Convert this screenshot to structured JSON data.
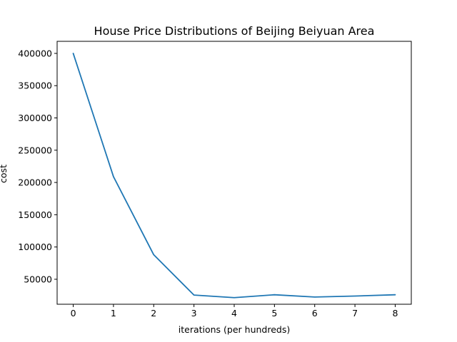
{
  "chart_data": {
    "type": "line",
    "title": "House Price Distributions of Beijing Beiyuan Area",
    "xlabel": "iterations (per hundreds)",
    "ylabel": "cost",
    "x": [
      0,
      1,
      2,
      3,
      4,
      5,
      6,
      7,
      8
    ],
    "series": [
      {
        "color": "#1f77b4",
        "values": [
          400000,
          209000,
          88000,
          25500,
          21500,
          26000,
          22500,
          24000,
          26000
        ]
      }
    ],
    "xlim": [
      -0.4,
      8.4
    ],
    "ylim": [
      11300,
      418700
    ],
    "xticks": [
      0,
      1,
      2,
      3,
      4,
      5,
      6,
      7,
      8
    ],
    "yticks": [
      50000,
      100000,
      150000,
      200000,
      250000,
      300000,
      350000,
      400000
    ],
    "xtick_labels": [
      "0",
      "1",
      "2",
      "3",
      "4",
      "5",
      "6",
      "7",
      "8"
    ],
    "ytick_labels": [
      "50000",
      "100000",
      "150000",
      "200000",
      "250000",
      "300000",
      "350000",
      "400000"
    ],
    "grid": false,
    "legend": "none"
  }
}
